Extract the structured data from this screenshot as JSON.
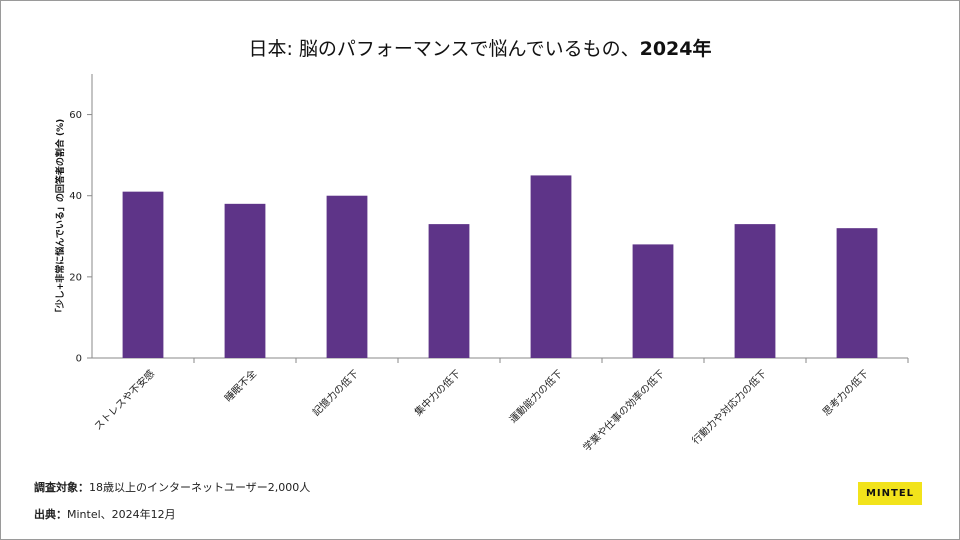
{
  "chart_data": {
    "type": "bar",
    "title": "日本: 脳のパフォーマンスで悩んでいるもの、",
    "title_year": "2024年",
    "ylabel": "「少し+非常に悩んでいる」の回答者の割合 (%)",
    "xlabel": "",
    "ylim": [
      0,
      70
    ],
    "yticks": [
      0,
      20,
      40,
      60
    ],
    "grid": false,
    "categories": [
      "ストレスや不安感",
      "睡眠不全",
      "記憶力の低下",
      "集中力の低下",
      "運動能力の低下",
      "学業や仕事の効率の低下",
      "行動力や対応力の低下",
      "思考力の低下"
    ],
    "values": [
      41,
      38,
      40,
      33,
      45,
      28,
      33,
      32
    ],
    "bar_color": "#5e3488"
  },
  "footer": {
    "note_label": "調査対象：",
    "note_text": "18歳以上のインターネットユーザー2,000人",
    "source_label": "出典：",
    "source_text": "Mintel、2024年12月"
  },
  "logo": {
    "text": "MINTEL"
  }
}
